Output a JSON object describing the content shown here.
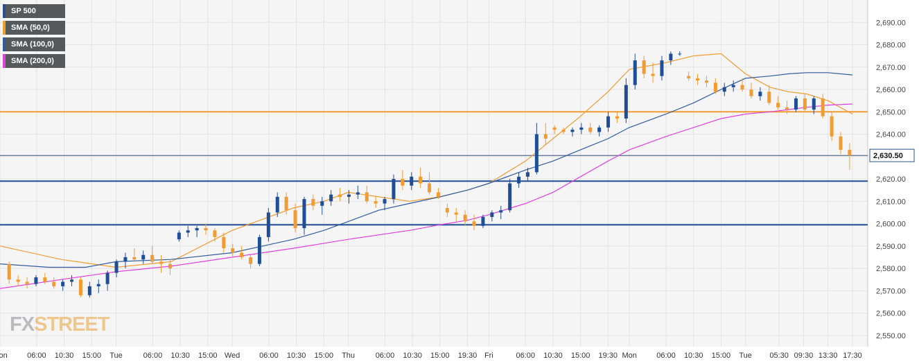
{
  "legend": [
    {
      "label": "SP 500",
      "color": "#2f4f8f"
    },
    {
      "label": "SMA (50,0)",
      "color": "#f29b30"
    },
    {
      "label": "SMA (100,0)",
      "color": "#2f5aa0"
    },
    {
      "label": "SMA (200,0)",
      "color": "#e040e0"
    }
  ],
  "watermark": {
    "part1": "FX",
    "part2": "STREET"
  },
  "current_price_label": "2,630.50",
  "colors": {
    "up": "#1f4e96",
    "down": "#f29b30",
    "sma50": "#f29b30",
    "sma100": "#2f5aa0",
    "sma200": "#e040e0",
    "resistance_line": "#f29b30",
    "support_line": "#1f4e96",
    "grid": "#e3e3e3",
    "plot_bg": "#f5f5f5",
    "price_tag_bg": "#ffffff"
  },
  "chart_data": {
    "type": "candlestick",
    "title": "SP 500",
    "ylim": [
      2545,
      2700
    ],
    "y_ticks": [
      "2,550.00",
      "2,560.00",
      "2,570.00",
      "2,580.00",
      "2,590.00",
      "2,600.00",
      "2,610.00",
      "2,620.00",
      "2,630.00",
      "2,640.00",
      "2,650.00",
      "2,660.00",
      "2,670.00",
      "2,680.00",
      "2,690.00"
    ],
    "y_tick_values": [
      2550,
      2560,
      2570,
      2580,
      2590,
      2600,
      2610,
      2620,
      2630,
      2640,
      2650,
      2660,
      2670,
      2680,
      2690
    ],
    "x_tick_labels": [
      "Mon",
      "06:00",
      "10:30",
      "15:00",
      "Tue",
      "06:00",
      "10:30",
      "15:00",
      "Wed",
      "06:00",
      "10:30",
      "15:00",
      "Thu",
      "06:00",
      "10:30",
      "15:00",
      "19:30",
      "Fri",
      "06:00",
      "10:30",
      "15:00",
      "19:30",
      "Mon",
      "06:00",
      "10:30",
      "15:00",
      "Tue",
      "05:30",
      "09:30",
      "13:30",
      "17:30"
    ],
    "x_tick_session_index": [
      0,
      6,
      10.5,
      15,
      19,
      25,
      29.5,
      34,
      38,
      44,
      48.5,
      53,
      57,
      63,
      67.5,
      72,
      76.5,
      80,
      86,
      90.5,
      95,
      99.5,
      103,
      109,
      113.5,
      118,
      122,
      127.5,
      131.5,
      135.5,
      139.5
    ],
    "x_session_range": [
      0,
      142
    ],
    "horizontal_levels": [
      {
        "value": 2650,
        "kind": "resistance"
      },
      {
        "value": 2619,
        "kind": "support"
      },
      {
        "value": 2599.5,
        "kind": "support"
      },
      {
        "value": 2630.5,
        "kind": "current"
      }
    ],
    "candles": [
      [
        2582,
        2583,
        2573,
        2575
      ],
      [
        2575,
        2577,
        2572,
        2574
      ],
      [
        2574,
        2576,
        2571,
        2573
      ],
      [
        2573,
        2577,
        2572,
        2576
      ],
      [
        2576,
        2578,
        2573,
        2574
      ],
      [
        2574,
        2576,
        2571,
        2572
      ],
      [
        2572,
        2575,
        2570,
        2574
      ],
      [
        2574,
        2577,
        2572,
        2575
      ],
      [
        2575,
        2576,
        2567,
        2568
      ],
      [
        2568,
        2574,
        2567,
        2572
      ],
      [
        2572,
        2575,
        2569,
        2573
      ],
      [
        2573,
        2579,
        2570,
        2578
      ],
      [
        2578,
        2584,
        2576,
        2583
      ],
      [
        2583,
        2587,
        2580,
        2585
      ],
      [
        2585,
        2589,
        2583,
        2584
      ],
      [
        2584,
        2588,
        2582,
        2586
      ],
      [
        2586,
        2590,
        2582,
        2583
      ],
      [
        2583,
        2586,
        2578,
        2582
      ],
      [
        2582,
        2584,
        2577,
        2580
      ],
      [
        2593,
        2597,
        2592,
        2596
      ],
      [
        2596,
        2599,
        2594,
        2597
      ],
      [
        2597,
        2599,
        2594,
        2598
      ],
      [
        2598,
        2600,
        2595,
        2597
      ],
      [
        2597,
        2598,
        2592,
        2594
      ],
      [
        2594,
        2596,
        2587,
        2589
      ],
      [
        2589,
        2591,
        2585,
        2587
      ],
      [
        2587,
        2590,
        2584,
        2585
      ],
      [
        2585,
        2586,
        2580,
        2582
      ],
      [
        2582,
        2595,
        2581,
        2594
      ],
      [
        2594,
        2607,
        2592,
        2605
      ],
      [
        2605,
        2614,
        2603,
        2612
      ],
      [
        2612,
        2614,
        2604,
        2606
      ],
      [
        2606,
        2609,
        2596,
        2598
      ],
      [
        2598,
        2612,
        2595,
        2611
      ],
      [
        2611,
        2613,
        2606,
        2608
      ],
      [
        2608,
        2612,
        2604,
        2610
      ],
      [
        2610,
        2615,
        2608,
        2613
      ],
      [
        2613,
        2616,
        2610,
        2612
      ],
      [
        2612,
        2615,
        2609,
        2613
      ],
      [
        2613,
        2617,
        2611,
        2614
      ],
      [
        2614,
        2617,
        2609,
        2610
      ],
      [
        2610,
        2612,
        2607,
        2609
      ],
      [
        2609,
        2612,
        2606,
        2611
      ],
      [
        2611,
        2622,
        2609,
        2620
      ],
      [
        2620,
        2624,
        2615,
        2617
      ],
      [
        2617,
        2623,
        2615,
        2621
      ],
      [
        2621,
        2625,
        2616,
        2618
      ],
      [
        2618,
        2623,
        2613,
        2614
      ],
      [
        2614,
        2616,
        2611,
        2612
      ],
      [
        2607,
        2609,
        2603,
        2605
      ],
      [
        2605,
        2607,
        2601,
        2604
      ],
      [
        2604,
        2606,
        2599,
        2601
      ],
      [
        2601,
        2604,
        2597,
        2599
      ],
      [
        2599,
        2604,
        2598,
        2603
      ],
      [
        2603,
        2606,
        2601,
        2605
      ],
      [
        2605,
        2608,
        2602,
        2606
      ],
      [
        2606,
        2620,
        2605,
        2618
      ],
      [
        2618,
        2623,
        2616,
        2621
      ],
      [
        2621,
        2625,
        2619,
        2623
      ],
      [
        2623,
        2645,
        2622,
        2640
      ],
      [
        2640,
        2645,
        2635,
        2638
      ],
      [
        2643,
        2644,
        2640,
        2642
      ],
      [
        2642,
        2643,
        2640,
        2641
      ],
      [
        2641,
        2643,
        2639,
        2642
      ],
      [
        2642,
        2645,
        2640,
        2643
      ],
      [
        2643,
        2645,
        2640,
        2641
      ],
      [
        2641,
        2644,
        2639,
        2643
      ],
      [
        2643,
        2650,
        2641,
        2648
      ],
      [
        2648,
        2650,
        2645,
        2647
      ],
      [
        2647,
        2665,
        2645,
        2662
      ],
      [
        2662,
        2676,
        2660,
        2673
      ],
      [
        2673,
        2675,
        2665,
        2667
      ],
      [
        2667,
        2672,
        2663,
        2666
      ],
      [
        2666,
        2675,
        2664,
        2673
      ],
      [
        2673,
        2677,
        2671,
        2676
      ],
      [
        2676,
        2677,
        2675,
        2676
      ],
      [
        2666,
        2668,
        2664,
        2665
      ],
      [
        2665,
        2667,
        2662,
        2664
      ],
      [
        2664,
        2666,
        2661,
        2663
      ],
      [
        2663,
        2665,
        2658,
        2659
      ],
      [
        2659,
        2663,
        2657,
        2661
      ],
      [
        2661,
        2664,
        2659,
        2662
      ],
      [
        2662,
        2665,
        2659,
        2660
      ],
      [
        2660,
        2663,
        2656,
        2657
      ],
      [
        2657,
        2661,
        2655,
        2659
      ],
      [
        2659,
        2662,
        2653,
        2654
      ],
      [
        2654,
        2657,
        2651,
        2652
      ],
      [
        2652,
        2655,
        2649,
        2651
      ],
      [
        2651,
        2657,
        2650,
        2656
      ],
      [
        2656,
        2658,
        2650,
        2651
      ],
      [
        2651,
        2657,
        2649,
        2656
      ],
      [
        2656,
        2658,
        2647,
        2648
      ],
      [
        2648,
        2650,
        2637,
        2639
      ],
      [
        2639,
        2641,
        2631,
        2633
      ],
      [
        2633,
        2636,
        2624,
        2630.5
      ]
    ],
    "series": [
      {
        "name": "SMA (50,0)",
        "x": [
          0,
          10,
          19,
          28,
          38,
          48,
          53,
          57,
          62,
          67,
          72,
          76.5,
          80,
          86,
          90.5,
          95,
          99.5,
          103,
          109,
          113.5,
          118,
          122,
          126,
          129,
          132,
          135.5,
          139.5
        ],
        "values": [
          2590,
          2584,
          2580.5,
          2583,
          2597,
          2607,
          2610,
          2614,
          2612,
          2610,
          2612,
          2615,
          2618,
          2628,
          2638,
          2648,
          2659,
          2669,
          2672,
          2675,
          2676,
          2667,
          2661,
          2659,
          2658,
          2655,
          2649
        ]
      },
      {
        "name": "SMA (100,0)",
        "x": [
          0,
          8,
          14,
          19,
          28,
          38,
          48,
          53,
          57,
          62,
          67,
          72,
          76.5,
          80,
          86,
          90.5,
          95,
          99.5,
          103,
          109,
          113.5,
          118,
          122,
          126,
          129,
          132,
          135.5,
          139.5
        ],
        "values": [
          2582,
          2580.5,
          2580.5,
          2583,
          2584,
          2587,
          2593,
          2597,
          2601,
          2606,
          2609,
          2612,
          2615,
          2618,
          2624,
          2628,
          2633,
          2638,
          2643,
          2649,
          2654,
          2660,
          2665,
          2666,
          2667,
          2667.5,
          2667.5,
          2666.5
        ]
      },
      {
        "name": "SMA (200,0)",
        "x": [
          0,
          10,
          19,
          28,
          38,
          48,
          57,
          67,
          72,
          76.5,
          80,
          86,
          90.5,
          95,
          99.5,
          103,
          109,
          113.5,
          118,
          122,
          126,
          129,
          132,
          135.5,
          139.5
        ],
        "values": [
          2571,
          2575,
          2578.5,
          2581,
          2585,
          2589,
          2593,
          2597,
          2599.5,
          2601.5,
          2604,
          2609,
          2614,
          2621,
          2628,
          2633,
          2639,
          2643,
          2647,
          2649,
          2650,
          2651,
          2652,
          2653,
          2653.5
        ]
      }
    ]
  }
}
